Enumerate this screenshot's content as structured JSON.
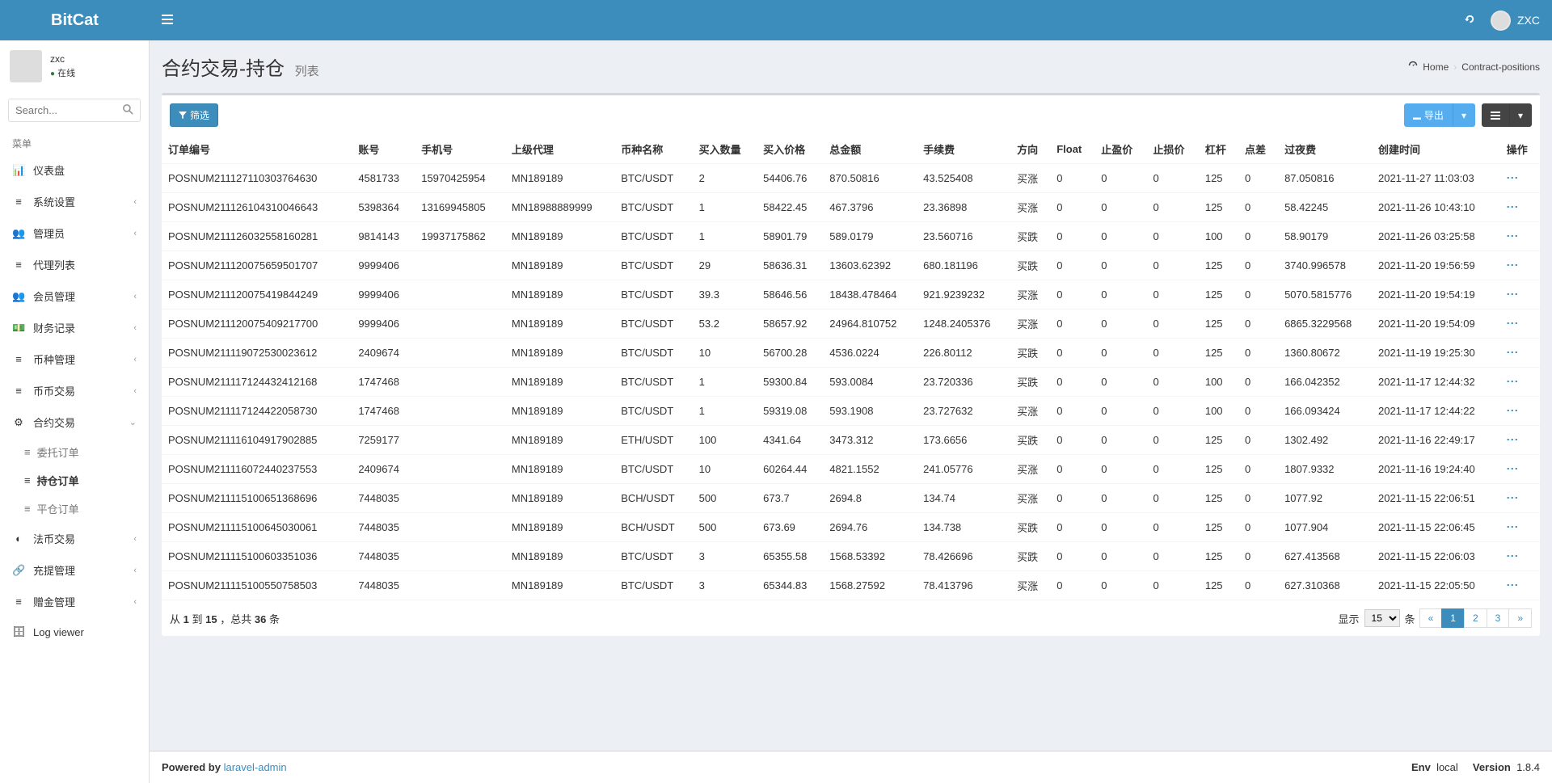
{
  "brand": "BitCat",
  "user": {
    "name": "zxc",
    "name_upper": "ZXC",
    "status": "在线"
  },
  "search": {
    "placeholder": "Search..."
  },
  "sidebar": {
    "header": "菜单",
    "items": [
      {
        "label": "仪表盘",
        "icon": "📊"
      },
      {
        "label": "系统设置",
        "icon": "≡",
        "chev": true
      },
      {
        "label": "管理员",
        "icon": "👥",
        "chev": true
      },
      {
        "label": "代理列表",
        "icon": "≡"
      },
      {
        "label": "会员管理",
        "icon": "👥",
        "chev": true
      },
      {
        "label": "财务记录",
        "icon": "💵",
        "chev": true
      },
      {
        "label": "币种管理",
        "icon": "≡",
        "chev": true
      },
      {
        "label": "币币交易",
        "icon": "≡",
        "chev": true
      },
      {
        "label": "合约交易",
        "icon": "⚙",
        "chev_down": true
      },
      {
        "label": "法币交易",
        "icon": "◐",
        "chev": true
      },
      {
        "label": "充提管理",
        "icon": "🔗",
        "chev": true
      },
      {
        "label": "赠金管理",
        "icon": "≡",
        "chev": true
      },
      {
        "label": "Log viewer",
        "icon": "🗄"
      }
    ],
    "sub": [
      {
        "label": "委托订单"
      },
      {
        "label": "持仓订单",
        "active": true
      },
      {
        "label": "平仓订单"
      }
    ]
  },
  "page": {
    "title": "合约交易-持仓",
    "subtitle": "列表"
  },
  "breadcrumb": {
    "home": "Home",
    "current": "Contract-positions"
  },
  "buttons": {
    "filter": "筛选",
    "export": "导出"
  },
  "columns": [
    "订单编号",
    "账号",
    "手机号",
    "上级代理",
    "币种名称",
    "买入数量",
    "买入价格",
    "总金额",
    "手续费",
    "方向",
    "Float",
    "止盈价",
    "止损价",
    "杠杆",
    "点差",
    "过夜费",
    "创建时间",
    "操作"
  ],
  "rows": [
    [
      "POSNUM211127110303764630",
      "4581733",
      "15970425954",
      "MN189189",
      "BTC/USDT",
      "2",
      "54406.76",
      "870.50816",
      "43.525408",
      "买涨",
      "0",
      "0",
      "0",
      "125",
      "0",
      "87.050816",
      "2021-11-27 11:03:03"
    ],
    [
      "POSNUM211126104310046643",
      "5398364",
      "13169945805",
      "MN18988889999",
      "BTC/USDT",
      "1",
      "58422.45",
      "467.3796",
      "23.36898",
      "买涨",
      "0",
      "0",
      "0",
      "125",
      "0",
      "58.42245",
      "2021-11-26 10:43:10"
    ],
    [
      "POSNUM211126032558160281",
      "9814143",
      "19937175862",
      "MN189189",
      "BTC/USDT",
      "1",
      "58901.79",
      "589.0179",
      "23.560716",
      "买跌",
      "0",
      "0",
      "0",
      "100",
      "0",
      "58.90179",
      "2021-11-26 03:25:58"
    ],
    [
      "POSNUM211120075659501707",
      "9999406",
      "",
      "MN189189",
      "BTC/USDT",
      "29",
      "58636.31",
      "13603.62392",
      "680.181196",
      "买跌",
      "0",
      "0",
      "0",
      "125",
      "0",
      "3740.996578",
      "2021-11-20 19:56:59"
    ],
    [
      "POSNUM211120075419844249",
      "9999406",
      "",
      "MN189189",
      "BTC/USDT",
      "39.3",
      "58646.56",
      "18438.478464",
      "921.9239232",
      "买涨",
      "0",
      "0",
      "0",
      "125",
      "0",
      "5070.5815776",
      "2021-11-20 19:54:19"
    ],
    [
      "POSNUM211120075409217700",
      "9999406",
      "",
      "MN189189",
      "BTC/USDT",
      "53.2",
      "58657.92",
      "24964.810752",
      "1248.2405376",
      "买涨",
      "0",
      "0",
      "0",
      "125",
      "0",
      "6865.3229568",
      "2021-11-20 19:54:09"
    ],
    [
      "POSNUM211119072530023612",
      "2409674",
      "",
      "MN189189",
      "BTC/USDT",
      "10",
      "56700.28",
      "4536.0224",
      "226.80112",
      "买跌",
      "0",
      "0",
      "0",
      "125",
      "0",
      "1360.80672",
      "2021-11-19 19:25:30"
    ],
    [
      "POSNUM211117124432412168",
      "1747468",
      "",
      "MN189189",
      "BTC/USDT",
      "1",
      "59300.84",
      "593.0084",
      "23.720336",
      "买跌",
      "0",
      "0",
      "0",
      "100",
      "0",
      "166.042352",
      "2021-11-17 12:44:32"
    ],
    [
      "POSNUM211117124422058730",
      "1747468",
      "",
      "MN189189",
      "BTC/USDT",
      "1",
      "59319.08",
      "593.1908",
      "23.727632",
      "买涨",
      "0",
      "0",
      "0",
      "100",
      "0",
      "166.093424",
      "2021-11-17 12:44:22"
    ],
    [
      "POSNUM211116104917902885",
      "7259177",
      "",
      "MN189189",
      "ETH/USDT",
      "100",
      "4341.64",
      "3473.312",
      "173.6656",
      "买跌",
      "0",
      "0",
      "0",
      "125",
      "0",
      "1302.492",
      "2021-11-16 22:49:17"
    ],
    [
      "POSNUM211116072440237553",
      "2409674",
      "",
      "MN189189",
      "BTC/USDT",
      "10",
      "60264.44",
      "4821.1552",
      "241.05776",
      "买涨",
      "0",
      "0",
      "0",
      "125",
      "0",
      "1807.9332",
      "2021-11-16 19:24:40"
    ],
    [
      "POSNUM211115100651368696",
      "7448035",
      "",
      "MN189189",
      "BCH/USDT",
      "500",
      "673.7",
      "2694.8",
      "134.74",
      "买涨",
      "0",
      "0",
      "0",
      "125",
      "0",
      "1077.92",
      "2021-11-15 22:06:51"
    ],
    [
      "POSNUM211115100645030061",
      "7448035",
      "",
      "MN189189",
      "BCH/USDT",
      "500",
      "673.69",
      "2694.76",
      "134.738",
      "买跌",
      "0",
      "0",
      "0",
      "125",
      "0",
      "1077.904",
      "2021-11-15 22:06:45"
    ],
    [
      "POSNUM211115100603351036",
      "7448035",
      "",
      "MN189189",
      "BTC/USDT",
      "3",
      "65355.58",
      "1568.53392",
      "78.426696",
      "买跌",
      "0",
      "0",
      "0",
      "125",
      "0",
      "627.413568",
      "2021-11-15 22:06:03"
    ],
    [
      "POSNUM211115100550758503",
      "7448035",
      "",
      "MN189189",
      "BTC/USDT",
      "3",
      "65344.83",
      "1568.27592",
      "78.413796",
      "买涨",
      "0",
      "0",
      "0",
      "125",
      "0",
      "627.310368",
      "2021-11-15 22:05:50"
    ]
  ],
  "footer_info": {
    "prefix": "从",
    "from": "1",
    "mid": "到",
    "to": "15",
    "sep": "，总共",
    "total": "36",
    "suffix": "条"
  },
  "pagination": {
    "show_label": "显示",
    "per_page": "15",
    "unit": "条",
    "pages": [
      "«",
      "1",
      "2",
      "3",
      "»"
    ]
  },
  "main_footer": {
    "powered": "Powered by",
    "link": "laravel-admin",
    "env_label": "Env",
    "env": "local",
    "version_label": "Version",
    "version": "1.8.4"
  }
}
